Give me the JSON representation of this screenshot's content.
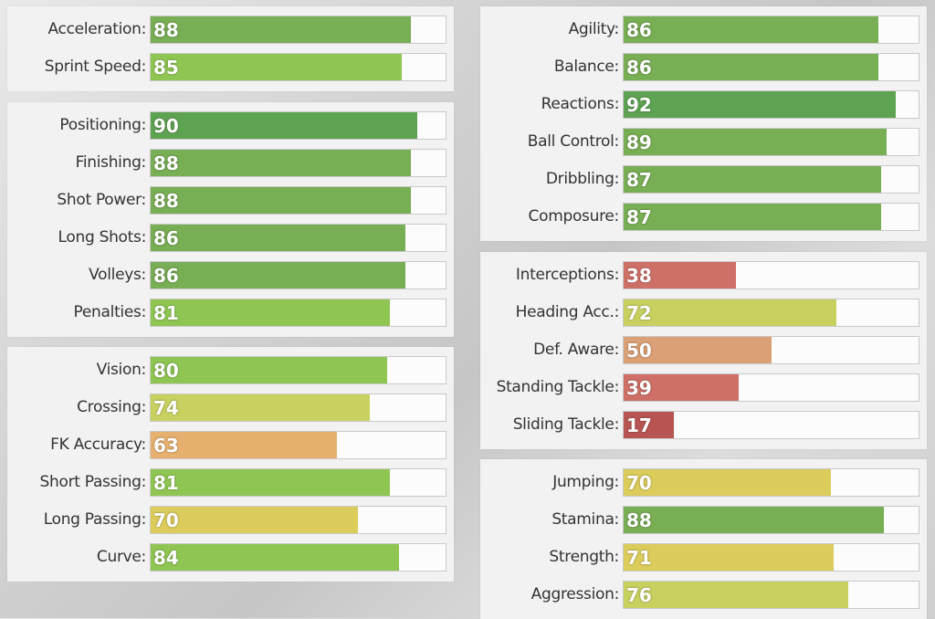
{
  "colors": {
    "elite": "#5ea352",
    "high": "#78ae54",
    "good": "#8fc653",
    "decent": "#c8d160",
    "average": "#dccc5c",
    "weak": "#e6b06e",
    "poor": "#dca076",
    "bad": "#cf7068",
    "very_bad": "#b85552"
  },
  "groups": [
    {
      "id": "pace",
      "stats": [
        {
          "label": "Acceleration:",
          "value": "88",
          "color": "#78ae54"
        },
        {
          "label": "Sprint Speed:",
          "value": "85",
          "color": "#8fc653"
        }
      ]
    },
    {
      "id": "shooting",
      "stats": [
        {
          "label": "Positioning:",
          "value": "90",
          "color": "#5ea352"
        },
        {
          "label": "Finishing:",
          "value": "88",
          "color": "#78ae54"
        },
        {
          "label": "Shot Power:",
          "value": "88",
          "color": "#78ae54"
        },
        {
          "label": "Long Shots:",
          "value": "86",
          "color": "#78ae54"
        },
        {
          "label": "Volleys:",
          "value": "86",
          "color": "#78ae54"
        },
        {
          "label": "Penalties:",
          "value": "81",
          "color": "#8fc653"
        }
      ]
    },
    {
      "id": "passing",
      "stats": [
        {
          "label": "Vision:",
          "value": "80",
          "color": "#8fc653"
        },
        {
          "label": "Crossing:",
          "value": "74",
          "color": "#c8d160"
        },
        {
          "label": "FK Accuracy:",
          "value": "63",
          "color": "#e6b06e"
        },
        {
          "label": "Short Passing:",
          "value": "81",
          "color": "#8fc653"
        },
        {
          "label": "Long Passing:",
          "value": "70",
          "color": "#dccc5c"
        },
        {
          "label": "Curve:",
          "value": "84",
          "color": "#8fc653"
        }
      ]
    },
    {
      "id": "dribbling",
      "stats": [
        {
          "label": "Agility:",
          "value": "86",
          "color": "#78ae54"
        },
        {
          "label": "Balance:",
          "value": "86",
          "color": "#78ae54"
        },
        {
          "label": "Reactions:",
          "value": "92",
          "color": "#5ea352"
        },
        {
          "label": "Ball Control:",
          "value": "89",
          "color": "#78ae54"
        },
        {
          "label": "Dribbling:",
          "value": "87",
          "color": "#78ae54"
        },
        {
          "label": "Composure:",
          "value": "87",
          "color": "#78ae54"
        }
      ]
    },
    {
      "id": "defending",
      "stats": [
        {
          "label": "Interceptions:",
          "value": "38",
          "color": "#cf7068"
        },
        {
          "label": "Heading Acc.:",
          "value": "72",
          "color": "#c8d160"
        },
        {
          "label": "Def. Aware:",
          "value": "50",
          "color": "#dca076"
        },
        {
          "label": "Standing Tackle:",
          "value": "39",
          "color": "#cf7068"
        },
        {
          "label": "Sliding Tackle:",
          "value": "17",
          "color": "#b85552"
        }
      ]
    },
    {
      "id": "physical",
      "stats": [
        {
          "label": "Jumping:",
          "value": "70",
          "color": "#dccc5c"
        },
        {
          "label": "Stamina:",
          "value": "88",
          "color": "#78ae54"
        },
        {
          "label": "Strength:",
          "value": "71",
          "color": "#dccc5c"
        },
        {
          "label": "Aggression:",
          "value": "76",
          "color": "#c8d160"
        }
      ]
    }
  ]
}
